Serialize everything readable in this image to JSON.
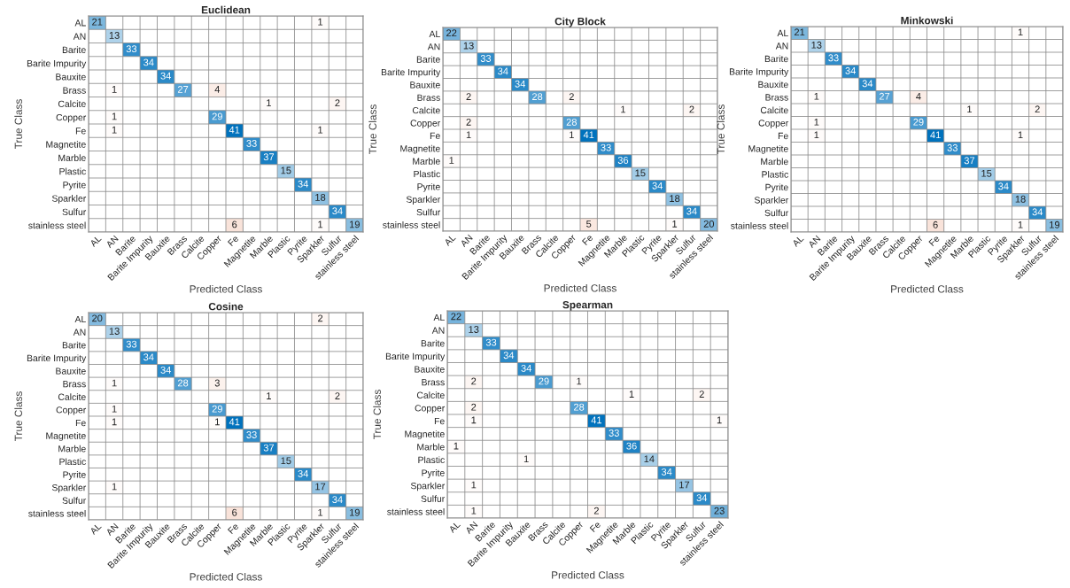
{
  "chart_data": [
    {
      "type": "heatmap",
      "title": "Euclidean",
      "xlabel": "Predicted Class",
      "ylabel": "True Class",
      "data_labels": true,
      "categories": [
        "AL",
        "AN",
        "Barite",
        "Barite Impurity",
        "Bauxite",
        "Brass",
        "Calcite",
        "Copper",
        "Fe",
        "Magnetite",
        "Marble",
        "Plastic",
        "Pyrite",
        "Sparkler",
        "Sulfur",
        "stainless steel"
      ],
      "y_categories": [
        "AL",
        "AN",
        "Barite",
        "Barite Impurity",
        "Bauxite",
        "Brass",
        "Calcite",
        "Copper",
        "Fe",
        "Magnetite",
        "Marble",
        "Plastic",
        "Pyrite",
        "Sparkler",
        "Sulfur",
        "stainless steel"
      ],
      "cells": [
        [
          21,
          null,
          null,
          null,
          null,
          null,
          null,
          null,
          null,
          null,
          null,
          null,
          null,
          1,
          null,
          null
        ],
        [
          null,
          13,
          null,
          null,
          null,
          null,
          null,
          null,
          null,
          null,
          null,
          null,
          null,
          null,
          null,
          null
        ],
        [
          null,
          null,
          33,
          null,
          null,
          null,
          null,
          null,
          null,
          null,
          null,
          null,
          null,
          null,
          null,
          null
        ],
        [
          null,
          null,
          null,
          34,
          null,
          null,
          null,
          null,
          null,
          null,
          null,
          null,
          null,
          null,
          null,
          null
        ],
        [
          null,
          null,
          null,
          null,
          34,
          null,
          null,
          null,
          null,
          null,
          null,
          null,
          null,
          null,
          null,
          null
        ],
        [
          null,
          1,
          null,
          null,
          null,
          27,
          null,
          4,
          null,
          null,
          null,
          null,
          null,
          null,
          null,
          null
        ],
        [
          null,
          null,
          null,
          null,
          null,
          null,
          null,
          null,
          null,
          null,
          1,
          null,
          null,
          null,
          2,
          null
        ],
        [
          null,
          1,
          null,
          null,
          null,
          null,
          null,
          29,
          null,
          null,
          null,
          null,
          null,
          null,
          null,
          null
        ],
        [
          null,
          1,
          null,
          null,
          null,
          null,
          null,
          null,
          41,
          null,
          null,
          null,
          null,
          1,
          null,
          null
        ],
        [
          null,
          null,
          null,
          null,
          null,
          null,
          null,
          null,
          null,
          33,
          null,
          null,
          null,
          null,
          null,
          null
        ],
        [
          null,
          null,
          null,
          null,
          null,
          null,
          null,
          null,
          null,
          null,
          37,
          null,
          null,
          null,
          null,
          null
        ],
        [
          null,
          null,
          null,
          null,
          null,
          null,
          null,
          null,
          null,
          null,
          null,
          15,
          null,
          null,
          null,
          null
        ],
        [
          null,
          null,
          null,
          null,
          null,
          null,
          null,
          null,
          null,
          null,
          null,
          null,
          34,
          null,
          null,
          null
        ],
        [
          null,
          null,
          null,
          null,
          null,
          null,
          null,
          null,
          null,
          null,
          null,
          null,
          null,
          18,
          null,
          null
        ],
        [
          null,
          null,
          null,
          null,
          null,
          null,
          null,
          null,
          null,
          null,
          null,
          null,
          null,
          null,
          34,
          null
        ],
        [
          null,
          null,
          null,
          null,
          null,
          null,
          null,
          null,
          6,
          null,
          null,
          null,
          null,
          1,
          null,
          19
        ]
      ]
    },
    {
      "type": "heatmap",
      "title": "City Block",
      "xlabel": "Predicted Class",
      "ylabel": "True Class",
      "data_labels": true,
      "categories": [
        "AL",
        "AN",
        "Barite",
        "Barite Impurity",
        "Bauxite",
        "Brass",
        "Calcite",
        "Copper",
        "Fe",
        "Magnetite",
        "Marble",
        "Plastic",
        "Pyrite",
        "Sparkler",
        "Sulfur",
        "stainless steel"
      ],
      "y_categories": [
        "AL",
        "AN",
        "Barite",
        "Barite Impurity",
        "Bauxite",
        "Brass",
        "Calcite",
        "Copper",
        "Fe",
        "Magnetite",
        "Marble",
        "Plastic",
        "Pyrite",
        "Sparkler",
        "Sulfur",
        "stainless steel"
      ],
      "cells": [
        [
          22,
          null,
          null,
          null,
          null,
          null,
          null,
          null,
          null,
          null,
          null,
          null,
          null,
          null,
          null,
          null
        ],
        [
          null,
          13,
          null,
          null,
          null,
          null,
          null,
          null,
          null,
          null,
          null,
          null,
          null,
          null,
          null,
          null
        ],
        [
          null,
          null,
          33,
          null,
          null,
          null,
          null,
          null,
          null,
          null,
          null,
          null,
          null,
          null,
          null,
          null
        ],
        [
          null,
          null,
          null,
          34,
          null,
          null,
          null,
          null,
          null,
          null,
          null,
          null,
          null,
          null,
          null,
          null
        ],
        [
          null,
          null,
          null,
          null,
          34,
          null,
          null,
          null,
          null,
          null,
          null,
          null,
          null,
          null,
          null,
          null
        ],
        [
          null,
          2,
          null,
          null,
          null,
          28,
          null,
          2,
          null,
          null,
          null,
          null,
          null,
          null,
          null,
          null
        ],
        [
          null,
          null,
          null,
          null,
          null,
          null,
          null,
          null,
          null,
          null,
          1,
          null,
          null,
          null,
          2,
          null
        ],
        [
          null,
          2,
          null,
          null,
          null,
          null,
          null,
          28,
          null,
          null,
          null,
          null,
          null,
          null,
          null,
          null
        ],
        [
          null,
          1,
          null,
          null,
          null,
          null,
          null,
          1,
          41,
          null,
          null,
          null,
          null,
          null,
          null,
          null
        ],
        [
          null,
          null,
          null,
          null,
          null,
          null,
          null,
          null,
          null,
          33,
          null,
          null,
          null,
          null,
          null,
          null
        ],
        [
          1,
          null,
          null,
          null,
          null,
          null,
          null,
          null,
          null,
          null,
          36,
          null,
          null,
          null,
          null,
          null
        ],
        [
          null,
          null,
          null,
          null,
          null,
          null,
          null,
          null,
          null,
          null,
          null,
          15,
          null,
          null,
          null,
          null
        ],
        [
          null,
          null,
          null,
          null,
          null,
          null,
          null,
          null,
          null,
          null,
          null,
          null,
          34,
          null,
          null,
          null
        ],
        [
          null,
          null,
          null,
          null,
          null,
          null,
          null,
          null,
          null,
          null,
          null,
          null,
          null,
          18,
          null,
          null
        ],
        [
          null,
          null,
          null,
          null,
          null,
          null,
          null,
          null,
          null,
          null,
          null,
          null,
          null,
          null,
          34,
          null
        ],
        [
          null,
          null,
          null,
          null,
          null,
          null,
          null,
          null,
          5,
          null,
          null,
          null,
          null,
          1,
          null,
          20
        ]
      ]
    },
    {
      "type": "heatmap",
      "title": "Minkowski",
      "xlabel": "Predicted Class",
      "ylabel": "True Class",
      "data_labels": true,
      "categories": [
        "AL",
        "AN",
        "Barite",
        "Barite Impurity",
        "Bauxite",
        "Brass",
        "Calcite",
        "Copper",
        "Fe",
        "Magnetite",
        "Marble",
        "Plastic",
        "Pyrite",
        "Sparkler",
        "Sulfur",
        "stainless steel"
      ],
      "y_categories": [
        "AL",
        "AN",
        "Barite",
        "Barite Impurity",
        "Bauxite",
        "Brass",
        "Calcite",
        "Copper",
        "Fe",
        "Magnetite",
        "Marble",
        "Plastic",
        "Pyrite",
        "Sparkler",
        "Sulfur",
        "stainless steel"
      ],
      "cells": [
        [
          21,
          null,
          null,
          null,
          null,
          null,
          null,
          null,
          null,
          null,
          null,
          null,
          null,
          1,
          null,
          null
        ],
        [
          null,
          13,
          null,
          null,
          null,
          null,
          null,
          null,
          null,
          null,
          null,
          null,
          null,
          null,
          null,
          null
        ],
        [
          null,
          null,
          33,
          null,
          null,
          null,
          null,
          null,
          null,
          null,
          null,
          null,
          null,
          null,
          null,
          null
        ],
        [
          null,
          null,
          null,
          34,
          null,
          null,
          null,
          null,
          null,
          null,
          null,
          null,
          null,
          null,
          null,
          null
        ],
        [
          null,
          null,
          null,
          null,
          34,
          null,
          null,
          null,
          null,
          null,
          null,
          null,
          null,
          null,
          null,
          null
        ],
        [
          null,
          1,
          null,
          null,
          null,
          27,
          null,
          4,
          null,
          null,
          null,
          null,
          null,
          null,
          null,
          null
        ],
        [
          null,
          null,
          null,
          null,
          null,
          null,
          null,
          null,
          null,
          null,
          1,
          null,
          null,
          null,
          2,
          null
        ],
        [
          null,
          1,
          null,
          null,
          null,
          null,
          null,
          29,
          null,
          null,
          null,
          null,
          null,
          null,
          null,
          null
        ],
        [
          null,
          1,
          null,
          null,
          null,
          null,
          null,
          null,
          41,
          null,
          null,
          null,
          null,
          1,
          null,
          null
        ],
        [
          null,
          null,
          null,
          null,
          null,
          null,
          null,
          null,
          null,
          33,
          null,
          null,
          null,
          null,
          null,
          null
        ],
        [
          null,
          null,
          null,
          null,
          null,
          null,
          null,
          null,
          null,
          null,
          37,
          null,
          null,
          null,
          null,
          null
        ],
        [
          null,
          null,
          null,
          null,
          null,
          null,
          null,
          null,
          null,
          null,
          null,
          15,
          null,
          null,
          null,
          null
        ],
        [
          null,
          null,
          null,
          null,
          null,
          null,
          null,
          null,
          null,
          null,
          null,
          null,
          34,
          null,
          null,
          null
        ],
        [
          null,
          null,
          null,
          null,
          null,
          null,
          null,
          null,
          null,
          null,
          null,
          null,
          null,
          18,
          null,
          null
        ],
        [
          null,
          null,
          null,
          null,
          null,
          null,
          null,
          null,
          null,
          null,
          null,
          null,
          null,
          null,
          34,
          null
        ],
        [
          null,
          null,
          null,
          null,
          null,
          null,
          null,
          null,
          6,
          null,
          null,
          null,
          null,
          1,
          null,
          19
        ]
      ]
    },
    {
      "type": "heatmap",
      "title": "Cosine",
      "xlabel": "Predicted Class",
      "ylabel": "True Class",
      "data_labels": true,
      "categories": [
        "AL",
        "AN",
        "Barite",
        "Barite Impurity",
        "Bauxite",
        "Brass",
        "Calcite",
        "Copper",
        "Fe",
        "Magnetite",
        "Marble",
        "Plastic",
        "Pyrite",
        "Sparkler",
        "Sulfur",
        "stainless steel"
      ],
      "y_categories": [
        "AL",
        "AN",
        "Barite",
        "Barite Impurity",
        "Bauxite",
        "Brass",
        "Calcite",
        "Copper",
        "Fe",
        "Magnetite",
        "Marble",
        "Plastic",
        "Pyrite",
        "Sparkler",
        "Sulfur",
        "stainless steel"
      ],
      "cells": [
        [
          20,
          null,
          null,
          null,
          null,
          null,
          null,
          null,
          null,
          null,
          null,
          null,
          null,
          2,
          null,
          null
        ],
        [
          null,
          13,
          null,
          null,
          null,
          null,
          null,
          null,
          null,
          null,
          null,
          null,
          null,
          null,
          null,
          null
        ],
        [
          null,
          null,
          33,
          null,
          null,
          null,
          null,
          null,
          null,
          null,
          null,
          null,
          null,
          null,
          null,
          null
        ],
        [
          null,
          null,
          null,
          34,
          null,
          null,
          null,
          null,
          null,
          null,
          null,
          null,
          null,
          null,
          null,
          null
        ],
        [
          null,
          null,
          null,
          null,
          34,
          null,
          null,
          null,
          null,
          null,
          null,
          null,
          null,
          null,
          null,
          null
        ],
        [
          null,
          1,
          null,
          null,
          null,
          28,
          null,
          3,
          null,
          null,
          null,
          null,
          null,
          null,
          null,
          null
        ],
        [
          null,
          null,
          null,
          null,
          null,
          null,
          null,
          null,
          null,
          null,
          1,
          null,
          null,
          null,
          2,
          null
        ],
        [
          null,
          1,
          null,
          null,
          null,
          null,
          null,
          29,
          null,
          null,
          null,
          null,
          null,
          null,
          null,
          null
        ],
        [
          null,
          1,
          null,
          null,
          null,
          null,
          null,
          1,
          41,
          null,
          null,
          null,
          null,
          null,
          null,
          null
        ],
        [
          null,
          null,
          null,
          null,
          null,
          null,
          null,
          null,
          null,
          33,
          null,
          null,
          null,
          null,
          null,
          null
        ],
        [
          null,
          null,
          null,
          null,
          null,
          null,
          null,
          null,
          null,
          null,
          37,
          null,
          null,
          null,
          null,
          null
        ],
        [
          null,
          null,
          null,
          null,
          null,
          null,
          null,
          null,
          null,
          null,
          null,
          15,
          null,
          null,
          null,
          null
        ],
        [
          null,
          null,
          null,
          null,
          null,
          null,
          null,
          null,
          null,
          null,
          null,
          null,
          34,
          null,
          null,
          null
        ],
        [
          null,
          1,
          null,
          null,
          null,
          null,
          null,
          null,
          null,
          null,
          null,
          null,
          null,
          17,
          null,
          null
        ],
        [
          null,
          null,
          null,
          null,
          null,
          null,
          null,
          null,
          null,
          null,
          null,
          null,
          null,
          null,
          34,
          null
        ],
        [
          null,
          null,
          null,
          null,
          null,
          null,
          null,
          null,
          6,
          null,
          null,
          null,
          null,
          1,
          null,
          19
        ]
      ]
    },
    {
      "type": "heatmap",
      "title": "Spearman",
      "xlabel": "Predicted Class",
      "ylabel": "True Class",
      "data_labels": true,
      "categories": [
        "AL",
        "AN",
        "Barite",
        "Barite Impurity",
        "Bauxite",
        "Brass",
        "Calcite",
        "Copper",
        "Fe",
        "Magnetite",
        "Marble",
        "Plastic",
        "Pyrite",
        "Sparkler",
        "Sulfur",
        "stainless steel"
      ],
      "y_categories": [
        "AL",
        "AN",
        "Barite",
        "Barite Impurity",
        "Bauxite",
        "Brass",
        "Calcite",
        "Copper",
        "Fe",
        "Magnetite",
        "Marble",
        "Plastic",
        "Pyrite",
        "Sparkler",
        "Sulfur",
        "stainless steel"
      ],
      "cells": [
        [
          22,
          null,
          null,
          null,
          null,
          null,
          null,
          null,
          null,
          null,
          null,
          null,
          null,
          null,
          null,
          null
        ],
        [
          null,
          13,
          null,
          null,
          null,
          null,
          null,
          null,
          null,
          null,
          null,
          null,
          null,
          null,
          null,
          null
        ],
        [
          null,
          null,
          33,
          null,
          null,
          null,
          null,
          null,
          null,
          null,
          null,
          null,
          null,
          null,
          null,
          null
        ],
        [
          null,
          null,
          null,
          34,
          null,
          null,
          null,
          null,
          null,
          null,
          null,
          null,
          null,
          null,
          null,
          null
        ],
        [
          null,
          null,
          null,
          null,
          34,
          null,
          null,
          null,
          null,
          null,
          null,
          null,
          null,
          null,
          null,
          null
        ],
        [
          null,
          2,
          null,
          null,
          null,
          29,
          null,
          1,
          null,
          null,
          null,
          null,
          null,
          null,
          null,
          null
        ],
        [
          null,
          null,
          null,
          null,
          null,
          null,
          null,
          null,
          null,
          null,
          1,
          null,
          null,
          null,
          2,
          null
        ],
        [
          null,
          2,
          null,
          null,
          null,
          null,
          null,
          28,
          null,
          null,
          null,
          null,
          null,
          null,
          null,
          null
        ],
        [
          null,
          1,
          null,
          null,
          null,
          null,
          null,
          null,
          41,
          null,
          null,
          null,
          null,
          null,
          null,
          1
        ],
        [
          null,
          null,
          null,
          null,
          null,
          null,
          null,
          null,
          null,
          33,
          null,
          null,
          null,
          null,
          null,
          null
        ],
        [
          1,
          null,
          null,
          null,
          null,
          null,
          null,
          null,
          null,
          null,
          36,
          null,
          null,
          null,
          null,
          null
        ],
        [
          null,
          null,
          null,
          null,
          1,
          null,
          null,
          null,
          null,
          null,
          null,
          14,
          null,
          null,
          null,
          null
        ],
        [
          null,
          null,
          null,
          null,
          null,
          null,
          null,
          null,
          null,
          null,
          null,
          null,
          34,
          null,
          null,
          null
        ],
        [
          null,
          1,
          null,
          null,
          null,
          null,
          null,
          null,
          null,
          null,
          null,
          null,
          null,
          17,
          null,
          null
        ],
        [
          null,
          null,
          null,
          null,
          null,
          null,
          null,
          null,
          null,
          null,
          null,
          null,
          null,
          null,
          34,
          null
        ],
        [
          null,
          1,
          null,
          null,
          null,
          null,
          null,
          null,
          2,
          null,
          null,
          null,
          null,
          null,
          null,
          23
        ]
      ]
    }
  ]
}
